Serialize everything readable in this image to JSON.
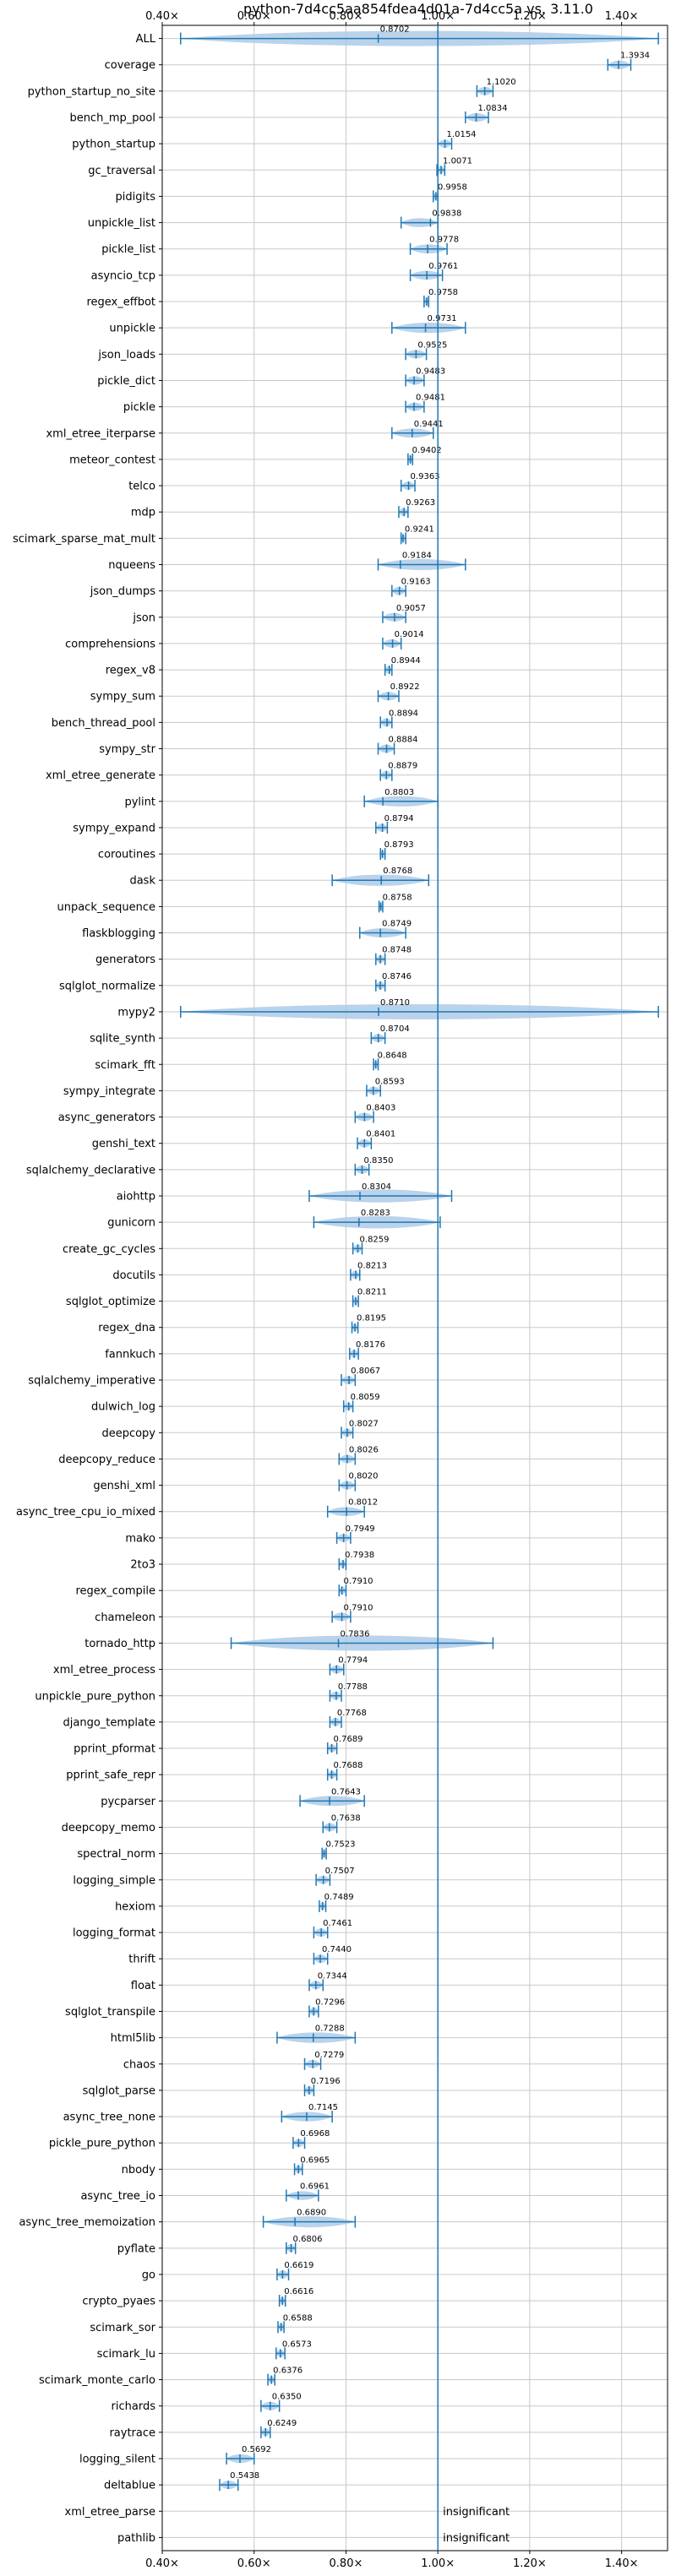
{
  "chart_data": {
    "type": "violin",
    "title": "python-7d4cc5aa854fdea4d01a-7d4cc5a vs. 3.11.0",
    "xlim": [
      0.4,
      1.5
    ],
    "xticks": [
      "0.40×",
      "0.60×",
      "0.80×",
      "1.00×",
      "1.20×",
      "1.40×"
    ],
    "xtick_values": [
      0.4,
      0.6,
      0.8,
      1.0,
      1.2,
      1.4
    ],
    "reference_line": 1.0,
    "grid": true,
    "colors": {
      "violin": "#aecbe6",
      "line": "#1f77b4",
      "grid": "#c8c8c8"
    },
    "benchmarks": [
      {
        "name": "ALL",
        "value": 0.8702,
        "label": "0.8702",
        "min": 0.44,
        "max": 1.48
      },
      {
        "name": "coverage",
        "value": 1.3934,
        "label": "1.3934",
        "min": 1.37,
        "max": 1.42
      },
      {
        "name": "python_startup_no_site",
        "value": 1.102,
        "label": "1.1020",
        "min": 1.085,
        "max": 1.12
      },
      {
        "name": "bench_mp_pool",
        "value": 1.0834,
        "label": "1.0834",
        "min": 1.06,
        "max": 1.11
      },
      {
        "name": "python_startup",
        "value": 1.0154,
        "label": "1.0154",
        "min": 1.0,
        "max": 1.03
      },
      {
        "name": "gc_traversal",
        "value": 1.0071,
        "label": "1.0071",
        "min": 0.998,
        "max": 1.015
      },
      {
        "name": "pidigits",
        "value": 0.9958,
        "label": "0.9958",
        "min": 0.99,
        "max": 1.0
      },
      {
        "name": "unpickle_list",
        "value": 0.9838,
        "label": "0.9838",
        "min": 0.92,
        "max": 1.0
      },
      {
        "name": "pickle_list",
        "value": 0.9778,
        "label": "0.9778",
        "min": 0.94,
        "max": 1.02
      },
      {
        "name": "asyncio_tcp",
        "value": 0.9761,
        "label": "0.9761",
        "min": 0.94,
        "max": 1.01
      },
      {
        "name": "regex_effbot",
        "value": 0.9758,
        "label": "0.9758",
        "min": 0.97,
        "max": 0.98
      },
      {
        "name": "unpickle",
        "value": 0.9731,
        "label": "0.9731",
        "min": 0.9,
        "max": 1.06
      },
      {
        "name": "json_loads",
        "value": 0.9525,
        "label": "0.9525",
        "min": 0.93,
        "max": 0.975
      },
      {
        "name": "pickle_dict",
        "value": 0.9483,
        "label": "0.9483",
        "min": 0.93,
        "max": 0.97
      },
      {
        "name": "pickle",
        "value": 0.9481,
        "label": "0.9481",
        "min": 0.93,
        "max": 0.97
      },
      {
        "name": "xml_etree_iterparse",
        "value": 0.9441,
        "label": "0.9441",
        "min": 0.9,
        "max": 0.99
      },
      {
        "name": "meteor_contest",
        "value": 0.9402,
        "label": "0.9402",
        "min": 0.935,
        "max": 0.945
      },
      {
        "name": "telco",
        "value": 0.9363,
        "label": "0.9363",
        "min": 0.92,
        "max": 0.95
      },
      {
        "name": "mdp",
        "value": 0.9263,
        "label": "0.9263",
        "min": 0.915,
        "max": 0.935
      },
      {
        "name": "scimark_sparse_mat_mult",
        "value": 0.9241,
        "label": "0.9241",
        "min": 0.92,
        "max": 0.93
      },
      {
        "name": "nqueens",
        "value": 0.9184,
        "label": "0.9184",
        "min": 0.87,
        "max": 1.06
      },
      {
        "name": "json_dumps",
        "value": 0.9163,
        "label": "0.9163",
        "min": 0.9,
        "max": 0.93
      },
      {
        "name": "json",
        "value": 0.9057,
        "label": "0.9057",
        "min": 0.88,
        "max": 0.93
      },
      {
        "name": "comprehensions",
        "value": 0.9014,
        "label": "0.9014",
        "min": 0.88,
        "max": 0.92
      },
      {
        "name": "regex_v8",
        "value": 0.8944,
        "label": "0.8944",
        "min": 0.885,
        "max": 0.9
      },
      {
        "name": "sympy_sum",
        "value": 0.8922,
        "label": "0.8922",
        "min": 0.87,
        "max": 0.915
      },
      {
        "name": "bench_thread_pool",
        "value": 0.8894,
        "label": "0.8894",
        "min": 0.875,
        "max": 0.9
      },
      {
        "name": "sympy_str",
        "value": 0.8884,
        "label": "0.8884",
        "min": 0.87,
        "max": 0.905
      },
      {
        "name": "xml_etree_generate",
        "value": 0.8879,
        "label": "0.8879",
        "min": 0.875,
        "max": 0.9
      },
      {
        "name": "pylint",
        "value": 0.8803,
        "label": "0.8803",
        "min": 0.84,
        "max": 1.0
      },
      {
        "name": "sympy_expand",
        "value": 0.8794,
        "label": "0.8794",
        "min": 0.865,
        "max": 0.89
      },
      {
        "name": "coroutines",
        "value": 0.8793,
        "label": "0.8793",
        "min": 0.875,
        "max": 0.885
      },
      {
        "name": "dask",
        "value": 0.8768,
        "label": "0.8768",
        "min": 0.77,
        "max": 0.98
      },
      {
        "name": "unpack_sequence",
        "value": 0.8758,
        "label": "0.8758",
        "min": 0.872,
        "max": 0.88
      },
      {
        "name": "flaskblogging",
        "value": 0.8749,
        "label": "0.8749",
        "min": 0.83,
        "max": 0.93
      },
      {
        "name": "generators",
        "value": 0.8748,
        "label": "0.8748",
        "min": 0.865,
        "max": 0.885
      },
      {
        "name": "sqlglot_normalize",
        "value": 0.8746,
        "label": "0.8746",
        "min": 0.865,
        "max": 0.885
      },
      {
        "name": "mypy2",
        "value": 0.871,
        "label": "0.8710",
        "min": 0.44,
        "max": 1.48
      },
      {
        "name": "sqlite_synth",
        "value": 0.8704,
        "label": "0.8704",
        "min": 0.855,
        "max": 0.885
      },
      {
        "name": "scimark_fft",
        "value": 0.8648,
        "label": "0.8648",
        "min": 0.86,
        "max": 0.87
      },
      {
        "name": "sympy_integrate",
        "value": 0.8593,
        "label": "0.8593",
        "min": 0.845,
        "max": 0.875
      },
      {
        "name": "async_generators",
        "value": 0.8403,
        "label": "0.8403",
        "min": 0.82,
        "max": 0.86
      },
      {
        "name": "genshi_text",
        "value": 0.8401,
        "label": "0.8401",
        "min": 0.825,
        "max": 0.855
      },
      {
        "name": "sqlalchemy_declarative",
        "value": 0.835,
        "label": "0.8350",
        "min": 0.82,
        "max": 0.85
      },
      {
        "name": "aiohttp",
        "value": 0.8304,
        "label": "0.8304",
        "min": 0.72,
        "max": 1.03
      },
      {
        "name": "gunicorn",
        "value": 0.8283,
        "label": "0.8283",
        "min": 0.73,
        "max": 1.005
      },
      {
        "name": "create_gc_cycles",
        "value": 0.8259,
        "label": "0.8259",
        "min": 0.815,
        "max": 0.835
      },
      {
        "name": "docutils",
        "value": 0.8213,
        "label": "0.8213",
        "min": 0.81,
        "max": 0.83
      },
      {
        "name": "sqlglot_optimize",
        "value": 0.8211,
        "label": "0.8211",
        "min": 0.815,
        "max": 0.827
      },
      {
        "name": "regex_dna",
        "value": 0.8195,
        "label": "0.8195",
        "min": 0.813,
        "max": 0.826
      },
      {
        "name": "fannkuch",
        "value": 0.8176,
        "label": "0.8176",
        "min": 0.808,
        "max": 0.827
      },
      {
        "name": "sqlalchemy_imperative",
        "value": 0.8067,
        "label": "0.8067",
        "min": 0.79,
        "max": 0.82
      },
      {
        "name": "dulwich_log",
        "value": 0.8059,
        "label": "0.8059",
        "min": 0.795,
        "max": 0.815
      },
      {
        "name": "deepcopy",
        "value": 0.8027,
        "label": "0.8027",
        "min": 0.79,
        "max": 0.815
      },
      {
        "name": "deepcopy_reduce",
        "value": 0.8026,
        "label": "0.8026",
        "min": 0.785,
        "max": 0.82
      },
      {
        "name": "genshi_xml",
        "value": 0.802,
        "label": "0.8020",
        "min": 0.785,
        "max": 0.82
      },
      {
        "name": "async_tree_cpu_io_mixed",
        "value": 0.8012,
        "label": "0.8012",
        "min": 0.76,
        "max": 0.84
      },
      {
        "name": "mako",
        "value": 0.7949,
        "label": "0.7949",
        "min": 0.78,
        "max": 0.81
      },
      {
        "name": "2to3",
        "value": 0.7938,
        "label": "0.7938",
        "min": 0.785,
        "max": 0.8
      },
      {
        "name": "regex_compile",
        "value": 0.791,
        "label": "0.7910",
        "min": 0.785,
        "max": 0.8
      },
      {
        "name": "chameleon",
        "value": 0.791,
        "label": "0.7910",
        "min": 0.77,
        "max": 0.81
      },
      {
        "name": "tornado_http",
        "value": 0.7836,
        "label": "0.7836",
        "min": 0.55,
        "max": 1.12
      },
      {
        "name": "xml_etree_process",
        "value": 0.7794,
        "label": "0.7794",
        "min": 0.765,
        "max": 0.795
      },
      {
        "name": "unpickle_pure_python",
        "value": 0.7788,
        "label": "0.7788",
        "min": 0.765,
        "max": 0.79
      },
      {
        "name": "django_template",
        "value": 0.7768,
        "label": "0.7768",
        "min": 0.765,
        "max": 0.79
      },
      {
        "name": "pprint_pformat",
        "value": 0.7689,
        "label": "0.7689",
        "min": 0.76,
        "max": 0.78
      },
      {
        "name": "pprint_safe_repr",
        "value": 0.7688,
        "label": "0.7688",
        "min": 0.76,
        "max": 0.78
      },
      {
        "name": "pycparser",
        "value": 0.7643,
        "label": "0.7643",
        "min": 0.7,
        "max": 0.84
      },
      {
        "name": "deepcopy_memo",
        "value": 0.7638,
        "label": "0.7638",
        "min": 0.75,
        "max": 0.78
      },
      {
        "name": "spectral_norm",
        "value": 0.7523,
        "label": "0.7523",
        "min": 0.748,
        "max": 0.757
      },
      {
        "name": "logging_simple",
        "value": 0.7507,
        "label": "0.7507",
        "min": 0.735,
        "max": 0.765
      },
      {
        "name": "hexiom",
        "value": 0.7489,
        "label": "0.7489",
        "min": 0.742,
        "max": 0.756
      },
      {
        "name": "logging_format",
        "value": 0.7461,
        "label": "0.7461",
        "min": 0.73,
        "max": 0.76
      },
      {
        "name": "thrift",
        "value": 0.744,
        "label": "0.7440",
        "min": 0.73,
        "max": 0.76
      },
      {
        "name": "float",
        "value": 0.7344,
        "label": "0.7344",
        "min": 0.72,
        "max": 0.75
      },
      {
        "name": "sqlglot_transpile",
        "value": 0.7296,
        "label": "0.7296",
        "min": 0.72,
        "max": 0.74
      },
      {
        "name": "html5lib",
        "value": 0.7288,
        "label": "0.7288",
        "min": 0.65,
        "max": 0.82
      },
      {
        "name": "chaos",
        "value": 0.7279,
        "label": "0.7279",
        "min": 0.71,
        "max": 0.745
      },
      {
        "name": "sqlglot_parse",
        "value": 0.7196,
        "label": "0.7196",
        "min": 0.71,
        "max": 0.73
      },
      {
        "name": "async_tree_none",
        "value": 0.7145,
        "label": "0.7145",
        "min": 0.66,
        "max": 0.77
      },
      {
        "name": "pickle_pure_python",
        "value": 0.6968,
        "label": "0.6968",
        "min": 0.685,
        "max": 0.71
      },
      {
        "name": "nbody",
        "value": 0.6965,
        "label": "0.6965",
        "min": 0.688,
        "max": 0.705
      },
      {
        "name": "async_tree_io",
        "value": 0.6961,
        "label": "0.6961",
        "min": 0.67,
        "max": 0.74
      },
      {
        "name": "async_tree_memoization",
        "value": 0.689,
        "label": "0.6890",
        "min": 0.62,
        "max": 0.82
      },
      {
        "name": "pyflate",
        "value": 0.6806,
        "label": "0.6806",
        "min": 0.67,
        "max": 0.69
      },
      {
        "name": "go",
        "value": 0.6619,
        "label": "0.6619",
        "min": 0.65,
        "max": 0.675
      },
      {
        "name": "crypto_pyaes",
        "value": 0.6616,
        "label": "0.6616",
        "min": 0.655,
        "max": 0.668
      },
      {
        "name": "scimark_sor",
        "value": 0.6588,
        "label": "0.6588",
        "min": 0.652,
        "max": 0.665
      },
      {
        "name": "scimark_lu",
        "value": 0.6573,
        "label": "0.6573",
        "min": 0.648,
        "max": 0.667
      },
      {
        "name": "scimark_monte_carlo",
        "value": 0.6376,
        "label": "0.6376",
        "min": 0.63,
        "max": 0.645
      },
      {
        "name": "richards",
        "value": 0.635,
        "label": "0.6350",
        "min": 0.615,
        "max": 0.655
      },
      {
        "name": "raytrace",
        "value": 0.6249,
        "label": "0.6249",
        "min": 0.615,
        "max": 0.635
      },
      {
        "name": "logging_silent",
        "value": 0.5692,
        "label": "0.5692",
        "min": 0.54,
        "max": 0.6
      },
      {
        "name": "deltablue",
        "value": 0.5438,
        "label": "0.5438",
        "min": 0.525,
        "max": 0.565
      },
      {
        "name": "xml_etree_parse",
        "value": null,
        "label": "insignificant"
      },
      {
        "name": "pathlib",
        "value": null,
        "label": "insignificant"
      }
    ]
  }
}
